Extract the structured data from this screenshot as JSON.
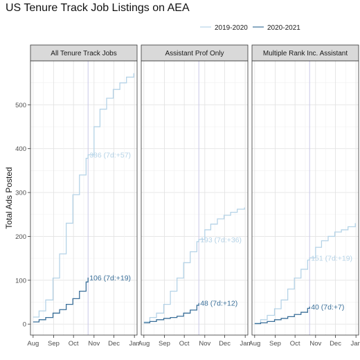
{
  "chart_data": {
    "type": "line",
    "title": "US Tenure Track Job Listings on AEA",
    "ylabel": "Total Ads Posted",
    "xlabel": "",
    "ylim": [
      -25,
      600
    ],
    "y_ticks": [
      0,
      100,
      200,
      300,
      400,
      500
    ],
    "x_ticks": [
      "Aug",
      "Sep",
      "Oct",
      "Nov",
      "Dec",
      "Jan"
    ],
    "legend": {
      "position": "top-right"
    },
    "grid": true,
    "colors": {
      "2019-2020": "#b5d3e7",
      "2020-2021": "#3a6f99",
      "reference_line": "#c9c7e8"
    },
    "series_names": [
      "2019-2020",
      "2020-2021"
    ],
    "reference_date": "Oct 23",
    "panels": [
      {
        "title": "All Tenure Track Jobs",
        "series": [
          {
            "name": "2019-2020",
            "x": [
              "Aug 1",
              "Aug 10",
              "Aug 20",
              "Aug 31",
              "Sep 10",
              "Sep 20",
              "Sep 30",
              "Oct 10",
              "Oct 20",
              "Oct 23",
              "Nov 1",
              "Nov 10",
              "Nov 20",
              "Nov 30",
              "Dec 10",
              "Dec 20",
              "Dec 31"
            ],
            "values": [
              16,
              30,
              55,
              105,
              160,
              230,
              295,
              340,
              378,
              386,
              450,
              490,
              515,
              535,
              550,
              563,
              572
            ],
            "label": "386 (7d:+57)"
          },
          {
            "name": "2020-2021",
            "x": [
              "Aug 1",
              "Aug 10",
              "Aug 20",
              "Aug 31",
              "Sep 10",
              "Sep 20",
              "Sep 30",
              "Oct 10",
              "Oct 20",
              "Oct 23"
            ],
            "values": [
              5,
              10,
              15,
              25,
              33,
              45,
              58,
              75,
              96,
              106
            ],
            "label": "106 (7d:+19)"
          }
        ]
      },
      {
        "title": "Assistant Prof Only",
        "series": [
          {
            "name": "2019-2020",
            "x": [
              "Aug 1",
              "Aug 10",
              "Aug 20",
              "Aug 31",
              "Sep 10",
              "Sep 20",
              "Sep 30",
              "Oct 10",
              "Oct 20",
              "Oct 23",
              "Nov 1",
              "Nov 10",
              "Nov 20",
              "Nov 30",
              "Dec 10",
              "Dec 20",
              "Dec 31"
            ],
            "values": [
              5,
              15,
              25,
              45,
              75,
              105,
              140,
              165,
              188,
              193,
              215,
              228,
              240,
              248,
              255,
              262,
              266
            ],
            "label": "193 (7d:+36)"
          },
          {
            "name": "2020-2021",
            "x": [
              "Aug 1",
              "Aug 10",
              "Aug 20",
              "Aug 31",
              "Sep 10",
              "Sep 20",
              "Sep 30",
              "Oct 10",
              "Oct 20",
              "Oct 23"
            ],
            "values": [
              3,
              6,
              10,
              13,
              15,
              18,
              25,
              32,
              43,
              48
            ],
            "label": "48 (7d:+12)"
          }
        ]
      },
      {
        "title": "Multiple Rank Inc. Assistant",
        "series": [
          {
            "name": "2019-2020",
            "x": [
              "Aug 1",
              "Aug 10",
              "Aug 20",
              "Aug 31",
              "Sep 10",
              "Sep 20",
              "Sep 30",
              "Oct 10",
              "Oct 20",
              "Oct 23",
              "Nov 1",
              "Nov 10",
              "Nov 20",
              "Nov 30",
              "Dec 10",
              "Dec 20",
              "Dec 31"
            ],
            "values": [
              2,
              10,
              20,
              35,
              55,
              80,
              105,
              125,
              146,
              151,
              175,
              190,
              200,
              210,
              215,
              222,
              230
            ],
            "label": "151 (7d:+19)"
          },
          {
            "name": "2020-2021",
            "x": [
              "Aug 1",
              "Aug 10",
              "Aug 20",
              "Aug 31",
              "Sep 10",
              "Sep 20",
              "Sep 30",
              "Oct 10",
              "Oct 20",
              "Oct 23"
            ],
            "values": [
              1,
              3,
              6,
              10,
              13,
              17,
              22,
              27,
              36,
              40
            ],
            "label": "40 (7d:+7)"
          }
        ]
      }
    ]
  }
}
